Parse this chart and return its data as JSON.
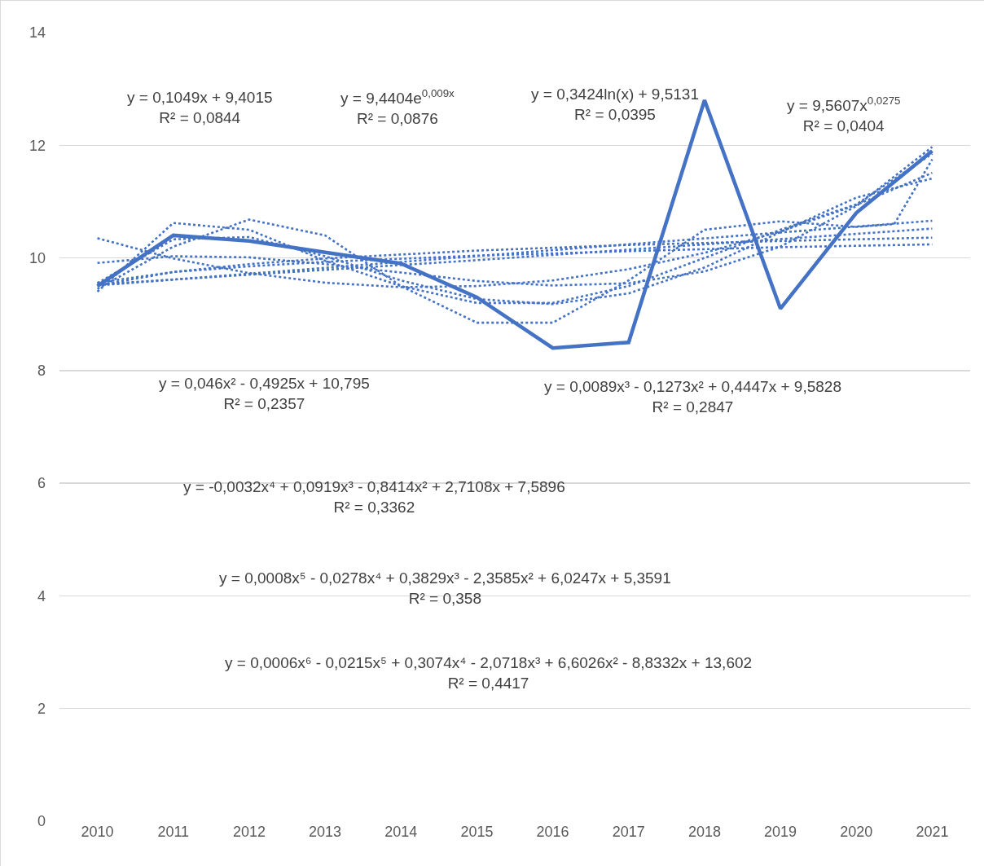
{
  "chart_data": {
    "type": "line",
    "x": [
      2010,
      2011,
      2012,
      2013,
      2014,
      2015,
      2016,
      2017,
      2018,
      2019,
      2020,
      2021
    ],
    "xlim": [
      2009.5,
      2021.5
    ],
    "xticks": [
      2010,
      2011,
      2012,
      2013,
      2014,
      2015,
      2016,
      2017,
      2018,
      2019,
      2020,
      2021
    ],
    "ylim": [
      0,
      14
    ],
    "yticks": [
      0,
      2,
      4,
      6,
      8,
      10,
      12,
      14
    ],
    "grid": "y",
    "marker": "none",
    "series": [
      {
        "color": "#4472c4",
        "line_style": "solid",
        "values": [
          9.5,
          10.4,
          10.3,
          10.1,
          9.9,
          9.3,
          8.4,
          8.5,
          12.8,
          9.1,
          10.8,
          11.9
        ]
      },
      {
        "type": "line",
        "color": "#4472c4",
        "line_style": "dotted",
        "x": [
          2010,
          2021
        ],
        "values": [
          9.51,
          10.66
        ]
      },
      {
        "type": "line",
        "color": "#4472c4",
        "line_style": "dotted",
        "x": [
          2010,
          2015,
          2021
        ],
        "values": [
          9.53,
          9.96,
          10.52
        ]
      },
      {
        "type": "line",
        "color": "#4472c4",
        "line_style": "dotted",
        "x": [
          2010,
          2011,
          2012,
          2013,
          2015,
          2017,
          2019,
          2021
        ],
        "values": [
          9.51,
          9.75,
          9.89,
          9.99,
          10.13,
          10.23,
          10.3,
          10.36
        ]
      },
      {
        "type": "line",
        "color": "#4472c4",
        "line_style": "dotted",
        "x": [
          2010,
          2011,
          2012,
          2013,
          2015,
          2017,
          2019,
          2021
        ],
        "values": [
          9.56,
          9.75,
          9.85,
          9.93,
          10.04,
          10.12,
          10.19,
          10.24
        ]
      },
      {
        "type": "line",
        "color": "#4472c4",
        "line_style": "dotted",
        "x": [
          2010,
          2011,
          2012,
          2013,
          2014,
          2015,
          2016,
          2017,
          2018,
          2019,
          2020,
          2021
        ],
        "values": [
          10.35,
          9.99,
          9.73,
          9.56,
          9.48,
          9.5,
          9.6,
          9.8,
          10.09,
          10.47,
          10.94,
          11.51
        ]
      },
      {
        "type": "line",
        "color": "#4472c4",
        "line_style": "dotted",
        "x": [
          2010,
          2011,
          2012,
          2013,
          2014,
          2015,
          2016,
          2017,
          2018,
          2019,
          2020,
          2021
        ],
        "values": [
          9.91,
          10.03,
          10.01,
          9.89,
          9.74,
          9.59,
          9.51,
          9.55,
          9.76,
          10.2,
          10.92,
          11.97
        ]
      },
      {
        "type": "line",
        "color": "#4472c4",
        "line_style": "dotted",
        "x": [
          2010,
          2011,
          2012,
          2013,
          2014,
          2015,
          2016,
          2017,
          2018,
          2019,
          2020,
          2021
        ],
        "values": [
          9.55,
          10.33,
          10.37,
          10.03,
          9.6,
          9.27,
          9.18,
          9.37,
          9.83,
          10.46,
          11.07,
          11.41
        ]
      },
      {
        "type": "line",
        "color": "#4472c4",
        "line_style": "dotted",
        "x": [
          2010,
          2011,
          2012,
          2013,
          2014,
          2015,
          2016,
          2017,
          2018,
          2019,
          2020,
          2021
        ],
        "values": [
          9.4,
          10.62,
          10.5,
          9.95,
          9.5,
          9.2,
          9.2,
          9.5,
          10.0,
          10.5,
          10.95,
          11.85
        ]
      },
      {
        "type": "line",
        "color": "#4472c4",
        "line_style": "dotted",
        "x": [
          2010,
          2011,
          2012,
          2013,
          2014,
          2015,
          2016,
          2017,
          2018,
          2019,
          2020,
          2020.5,
          2021
        ],
        "values": [
          9.45,
          10.2,
          10.68,
          10.4,
          9.5,
          8.85,
          8.85,
          9.6,
          10.5,
          10.65,
          10.55,
          10.6,
          11.75
        ]
      }
    ],
    "annotations": [
      "y = 0,1049x + 9,4015\nR² = 0,0844",
      "y = 9,4404e$^{0,009x}$\nR² = 0,0876",
      "y = 0,3424ln(x) + 9,5131\nR² = 0,0395",
      "y = 9,5607x$^{0,0275}$\nR² = 0,0404",
      "y = 0,046x² - 0,4925x + 10,795\nR² = 0,2357",
      "y = 0,0089x³ - 0,1273x² + 0,4447x + 9,5828\nR² = 0,2847",
      "y = -0,0032x⁴ + 0,0919x³ - 0,8414x² + 2,7108x + 7,5896\nR² = 0,3362",
      "y = 0,0008x⁵ - 0,0278x⁴ + 0,3829x³ - 2,3585x² + 6,0247x + 5,3591\nR² = 0,358",
      "y = 0,0006x⁶ - 0,0215x⁵ + 0,3074x⁴ - 2,0718x³ + 6,6026x² - 8,8332x + 13,602\nR² = 0,4417"
    ]
  }
}
